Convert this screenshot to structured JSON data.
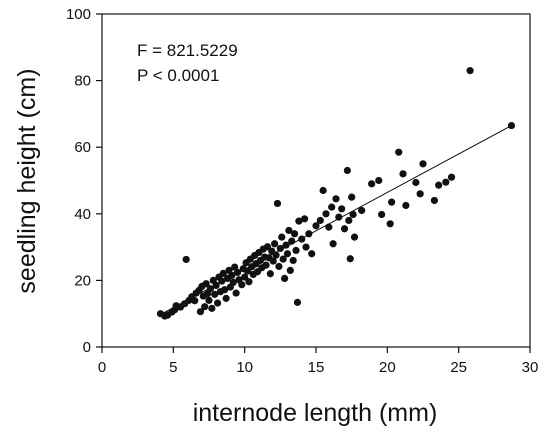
{
  "chart_data": {
    "type": "scatter",
    "xlabel": "internode length (mm)",
    "ylabel": "seedling height (cm)",
    "xlim": [
      0,
      30
    ],
    "ylim": [
      0,
      100
    ],
    "xticks": [
      0,
      5,
      10,
      15,
      20,
      25,
      30
    ],
    "yticks": [
      0,
      20,
      40,
      60,
      80,
      100
    ],
    "xtick_labels": [
      "0",
      "5",
      "10",
      "15",
      "20",
      "25",
      "30"
    ],
    "ytick_labels": [
      "0",
      "20",
      "40",
      "60",
      "80",
      "100"
    ],
    "grid": false,
    "marker_color": "#111111",
    "annotations": [
      "F = 821.5229",
      "P < 0.0001"
    ],
    "regression_line": {
      "x": [
        4.0,
        28.7
      ],
      "y": [
        9.5,
        66.5
      ]
    },
    "points": [
      {
        "x": 4.1,
        "y": 10.0
      },
      {
        "x": 4.4,
        "y": 9.3
      },
      {
        "x": 4.6,
        "y": 9.6
      },
      {
        "x": 4.9,
        "y": 10.5
      },
      {
        "x": 5.1,
        "y": 11.2
      },
      {
        "x": 5.2,
        "y": 12.4
      },
      {
        "x": 5.5,
        "y": 12.0
      },
      {
        "x": 5.8,
        "y": 13.0
      },
      {
        "x": 5.9,
        "y": 26.3
      },
      {
        "x": 6.1,
        "y": 14.0
      },
      {
        "x": 6.3,
        "y": 15.1
      },
      {
        "x": 6.5,
        "y": 13.9
      },
      {
        "x": 6.6,
        "y": 16.2
      },
      {
        "x": 6.8,
        "y": 17.0
      },
      {
        "x": 6.9,
        "y": 10.6
      },
      {
        "x": 7.0,
        "y": 18.2
      },
      {
        "x": 7.1,
        "y": 15.3
      },
      {
        "x": 7.2,
        "y": 12.1
      },
      {
        "x": 7.3,
        "y": 19.0
      },
      {
        "x": 7.4,
        "y": 16.0
      },
      {
        "x": 7.5,
        "y": 14.0
      },
      {
        "x": 7.6,
        "y": 17.5
      },
      {
        "x": 7.7,
        "y": 11.6
      },
      {
        "x": 7.8,
        "y": 20.0
      },
      {
        "x": 7.9,
        "y": 15.8
      },
      {
        "x": 8.0,
        "y": 18.5
      },
      {
        "x": 8.1,
        "y": 13.2
      },
      {
        "x": 8.2,
        "y": 21.0
      },
      {
        "x": 8.3,
        "y": 16.6
      },
      {
        "x": 8.4,
        "y": 19.8
      },
      {
        "x": 8.5,
        "y": 22.1
      },
      {
        "x": 8.6,
        "y": 17.2
      },
      {
        "x": 8.7,
        "y": 14.6
      },
      {
        "x": 8.8,
        "y": 20.6
      },
      {
        "x": 8.9,
        "y": 23.0
      },
      {
        "x": 9.0,
        "y": 18.0
      },
      {
        "x": 9.1,
        "y": 21.5
      },
      {
        "x": 9.2,
        "y": 19.4
      },
      {
        "x": 9.3,
        "y": 24.0
      },
      {
        "x": 9.4,
        "y": 16.2
      },
      {
        "x": 9.5,
        "y": 22.4
      },
      {
        "x": 9.6,
        "y": 20.2
      },
      {
        "x": 9.8,
        "y": 18.7
      },
      {
        "x": 9.9,
        "y": 23.5
      },
      {
        "x": 10.0,
        "y": 21.0
      },
      {
        "x": 10.1,
        "y": 25.3
      },
      {
        "x": 10.2,
        "y": 22.8
      },
      {
        "x": 10.3,
        "y": 19.6
      },
      {
        "x": 10.4,
        "y": 26.4
      },
      {
        "x": 10.5,
        "y": 24.1
      },
      {
        "x": 10.6,
        "y": 21.8
      },
      {
        "x": 10.7,
        "y": 27.5
      },
      {
        "x": 10.8,
        "y": 25.0
      },
      {
        "x": 10.9,
        "y": 22.6
      },
      {
        "x": 11.0,
        "y": 28.4
      },
      {
        "x": 11.1,
        "y": 26.0
      },
      {
        "x": 11.2,
        "y": 23.8
      },
      {
        "x": 11.3,
        "y": 29.4
      },
      {
        "x": 11.4,
        "y": 27.0
      },
      {
        "x": 11.5,
        "y": 24.6
      },
      {
        "x": 11.6,
        "y": 30.1
      },
      {
        "x": 11.7,
        "y": 26.8
      },
      {
        "x": 11.8,
        "y": 22.0
      },
      {
        "x": 11.9,
        "y": 28.8
      },
      {
        "x": 12.0,
        "y": 25.8
      },
      {
        "x": 12.1,
        "y": 31.0
      },
      {
        "x": 12.2,
        "y": 27.6
      },
      {
        "x": 12.3,
        "y": 43.1
      },
      {
        "x": 12.4,
        "y": 24.2
      },
      {
        "x": 12.5,
        "y": 29.6
      },
      {
        "x": 12.6,
        "y": 33.0
      },
      {
        "x": 12.7,
        "y": 26.4
      },
      {
        "x": 12.8,
        "y": 20.6
      },
      {
        "x": 12.9,
        "y": 30.6
      },
      {
        "x": 13.0,
        "y": 28.0
      },
      {
        "x": 13.1,
        "y": 35.0
      },
      {
        "x": 13.2,
        "y": 23.0
      },
      {
        "x": 13.3,
        "y": 31.8
      },
      {
        "x": 13.4,
        "y": 26.0
      },
      {
        "x": 13.5,
        "y": 34.0
      },
      {
        "x": 13.6,
        "y": 29.0
      },
      {
        "x": 13.7,
        "y": 13.4
      },
      {
        "x": 13.8,
        "y": 37.8
      },
      {
        "x": 14.0,
        "y": 32.4
      },
      {
        "x": 14.2,
        "y": 38.5
      },
      {
        "x": 14.3,
        "y": 30.0
      },
      {
        "x": 14.5,
        "y": 34.0
      },
      {
        "x": 14.7,
        "y": 28.0
      },
      {
        "x": 15.0,
        "y": 36.4
      },
      {
        "x": 15.3,
        "y": 38.0
      },
      {
        "x": 15.5,
        "y": 47.0
      },
      {
        "x": 15.7,
        "y": 40.0
      },
      {
        "x": 15.9,
        "y": 36.0
      },
      {
        "x": 16.1,
        "y": 42.0
      },
      {
        "x": 16.2,
        "y": 31.0
      },
      {
        "x": 16.4,
        "y": 44.5
      },
      {
        "x": 16.6,
        "y": 39.0
      },
      {
        "x": 16.8,
        "y": 41.5
      },
      {
        "x": 17.0,
        "y": 35.5
      },
      {
        "x": 17.2,
        "y": 53.0
      },
      {
        "x": 17.3,
        "y": 38.0
      },
      {
        "x": 17.4,
        "y": 26.5
      },
      {
        "x": 17.5,
        "y": 45.0
      },
      {
        "x": 17.6,
        "y": 39.8
      },
      {
        "x": 17.7,
        "y": 33.0
      },
      {
        "x": 18.2,
        "y": 41.0
      },
      {
        "x": 18.9,
        "y": 49.0
      },
      {
        "x": 19.4,
        "y": 50.0
      },
      {
        "x": 19.6,
        "y": 39.8
      },
      {
        "x": 20.2,
        "y": 37.0
      },
      {
        "x": 20.3,
        "y": 43.5
      },
      {
        "x": 20.8,
        "y": 58.5
      },
      {
        "x": 21.1,
        "y": 52.0
      },
      {
        "x": 21.3,
        "y": 42.5
      },
      {
        "x": 22.0,
        "y": 49.4
      },
      {
        "x": 22.3,
        "y": 46.0
      },
      {
        "x": 22.5,
        "y": 55.0
      },
      {
        "x": 23.3,
        "y": 44.0
      },
      {
        "x": 23.6,
        "y": 48.6
      },
      {
        "x": 24.1,
        "y": 49.5
      },
      {
        "x": 24.5,
        "y": 51.0
      },
      {
        "x": 25.8,
        "y": 83.0
      },
      {
        "x": 28.7,
        "y": 66.5
      }
    ]
  }
}
